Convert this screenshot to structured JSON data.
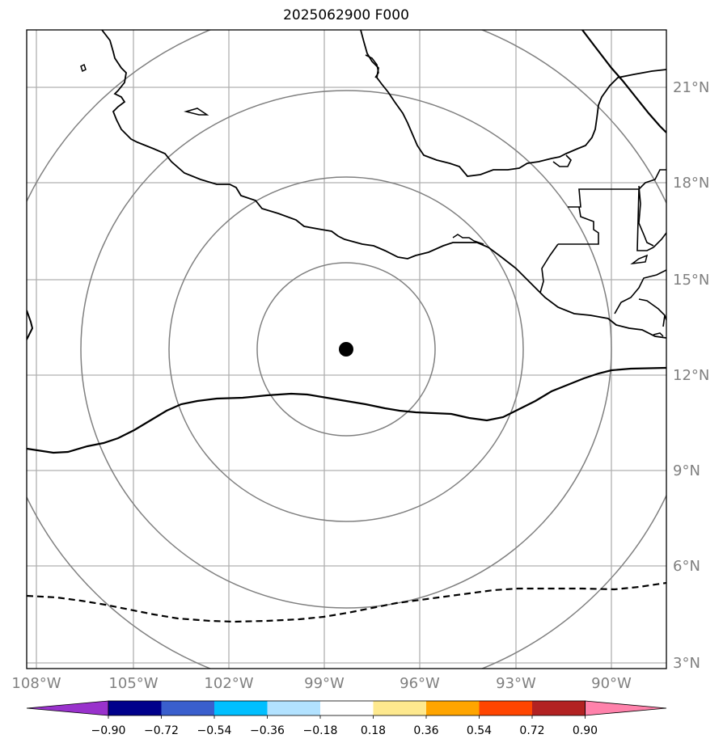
{
  "title": "2025062900 F000",
  "colors": {
    "coastline": "#000000",
    "gridline": "#b0b0b0",
    "range_ring": "#808080",
    "axis_label": "#808080",
    "storm_center": "#000000"
  },
  "map": {
    "lon_labels": [
      "108°W",
      "105°W",
      "102°W",
      "99°W",
      "96°W",
      "93°W",
      "90°W"
    ],
    "lat_labels": [
      "21°N",
      "18°N",
      "15°N",
      "12°N",
      "9°N",
      "6°N",
      "3°N"
    ],
    "storm_center_icon": "filled-circle"
  },
  "colorbar": {
    "colors": [
      "#9932cc",
      "#00008b",
      "#3a5fcd",
      "#00bfff",
      "#b2e2ff",
      "#ffffff",
      "#fee98e",
      "#ffa500",
      "#ff4500",
      "#b22222",
      "#ff82ab"
    ],
    "tick_labels": [
      "−0.90",
      "−0.72",
      "−0.54",
      "−0.36",
      "−0.18",
      "0.18",
      "0.36",
      "0.54",
      "0.72",
      "0.90"
    ]
  }
}
